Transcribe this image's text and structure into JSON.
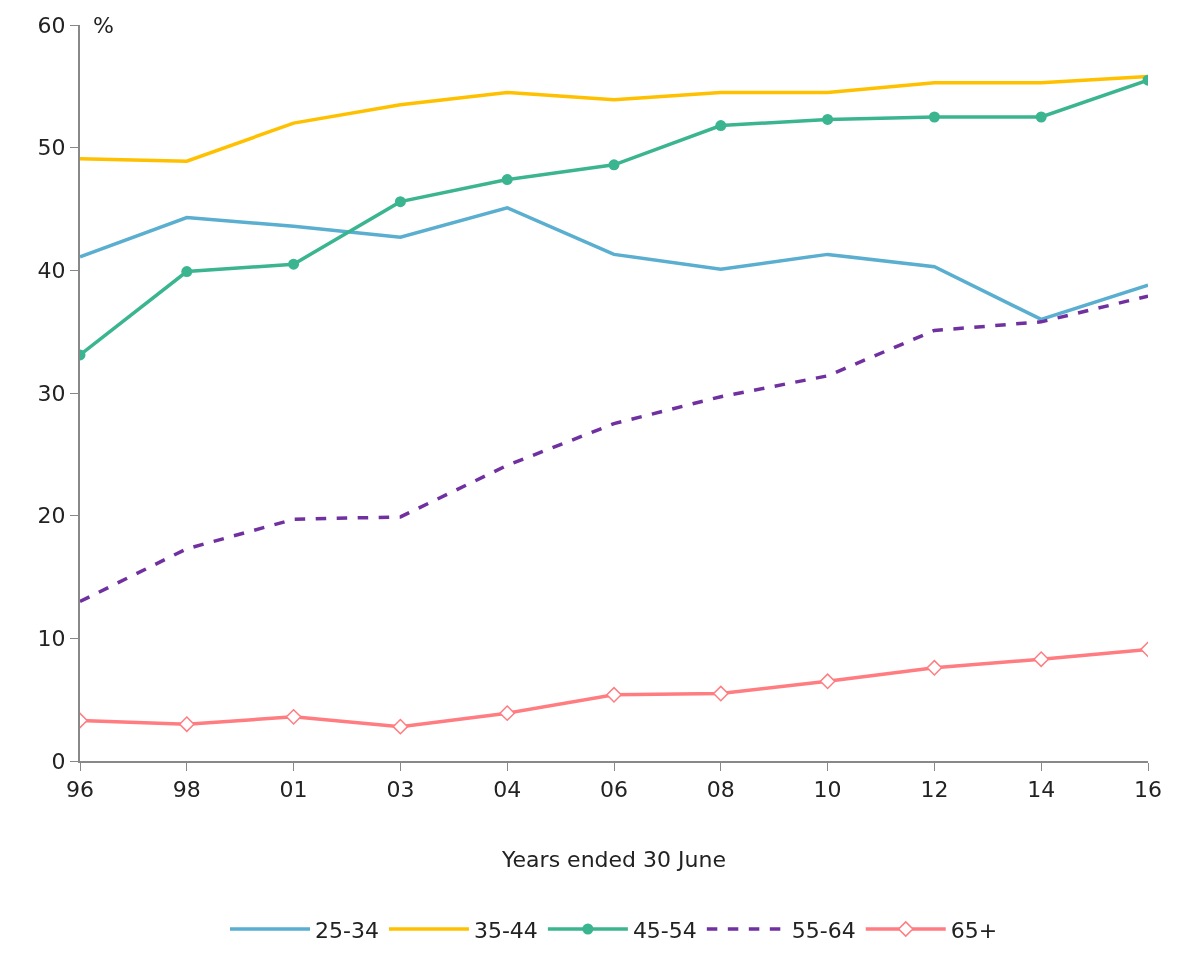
{
  "chart_data": {
    "type": "line",
    "xlabel": "Years ended 30 June",
    "ylabel": "%",
    "categories": [
      "96",
      "98",
      "01",
      "03",
      "04",
      "06",
      "08",
      "10",
      "12",
      "14",
      "16"
    ],
    "ylim": [
      0,
      60
    ],
    "yticks": [
      0,
      10,
      20,
      30,
      40,
      50,
      60
    ],
    "legend": "bottom",
    "series": [
      {
        "name": "25-34",
        "color": "#5aaed0",
        "marker": "none",
        "line_style": "solid",
        "values": [
          41.1,
          44.3,
          43.6,
          42.7,
          45.1,
          41.3,
          40.1,
          41.3,
          40.3,
          36.0,
          38.8
        ]
      },
      {
        "name": "35-44",
        "color": "#ffc000",
        "marker": "none",
        "line_style": "solid",
        "values": [
          49.1,
          48.9,
          52.0,
          53.5,
          54.5,
          53.9,
          54.5,
          54.5,
          55.3,
          55.3,
          55.8
        ]
      },
      {
        "name": "45-54",
        "color": "#3bb58f",
        "marker": "circle",
        "line_style": "solid",
        "values": [
          33.1,
          39.9,
          40.5,
          45.6,
          47.4,
          48.6,
          51.8,
          52.3,
          52.5,
          52.5,
          55.5
        ]
      },
      {
        "name": "55-64",
        "color": "#7030a0",
        "marker": "none",
        "line_style": "dashed",
        "values": [
          13.0,
          17.3,
          19.7,
          19.9,
          24.1,
          27.5,
          29.7,
          31.4,
          35.1,
          35.8,
          37.9
        ]
      },
      {
        "name": "65+",
        "color": "#ff7c80",
        "marker": "diamond",
        "line_style": "solid",
        "values": [
          3.3,
          3.0,
          3.6,
          2.8,
          3.9,
          5.4,
          5.5,
          6.5,
          7.6,
          8.3,
          9.1
        ]
      }
    ]
  }
}
